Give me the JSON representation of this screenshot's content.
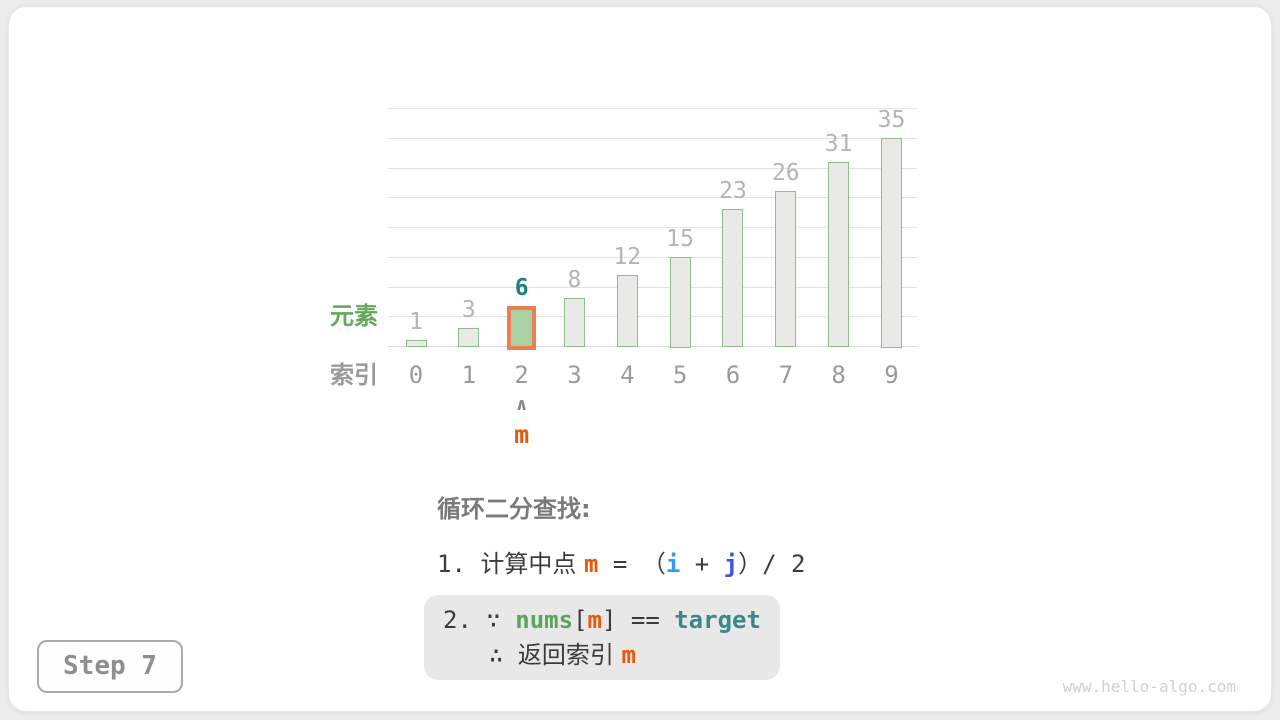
{
  "chart_data": {
    "type": "bar",
    "title": "",
    "categories": [
      "0",
      "1",
      "2",
      "3",
      "4",
      "5",
      "6",
      "7",
      "8",
      "9"
    ],
    "values": [
      1,
      3,
      6,
      8,
      12,
      15,
      23,
      26,
      31,
      35
    ],
    "xlabel": "索引",
    "ylabel": "元素",
    "ylim": [
      0,
      40
    ],
    "gridline_step": 5,
    "grid": true,
    "bar_fill": "#e9eae8",
    "bar_border": "#8fbe8c",
    "value_label_color": "#b4b4b4",
    "highlight": {
      "index": 2,
      "bar_fill": "#a8d2a2",
      "bar_border": "#ef7e4e",
      "value_label_color": "#21807e"
    },
    "pointer": {
      "index": 2,
      "caret": "∧",
      "label": "m"
    }
  },
  "explanation": {
    "heading": "循环二分查找:",
    "line1": [
      {
        "t": "1. ",
        "s": "code"
      },
      {
        "t": "计算中点 ",
        "s": "plain"
      },
      {
        "t": "m",
        "s": "kw-m"
      },
      {
        "t": " = ",
        "s": "code"
      },
      {
        "t": "（",
        "s": "plain"
      },
      {
        "t": "i",
        "s": "kw-i"
      },
      {
        "t": " + ",
        "s": "code"
      },
      {
        "t": "j",
        "s": "kw-j"
      },
      {
        "t": "）",
        "s": "plain"
      },
      {
        "t": "/ 2",
        "s": "code"
      }
    ],
    "line2a": [
      {
        "t": "2. ",
        "s": "code"
      },
      {
        "t": "∵ ",
        "s": "code"
      },
      {
        "t": "nums",
        "s": "kw-nums"
      },
      {
        "t": "[",
        "s": "code"
      },
      {
        "t": "m",
        "s": "kw-m"
      },
      {
        "t": "] == ",
        "s": "code"
      },
      {
        "t": "target",
        "s": "kw-target"
      }
    ],
    "line2b": [
      {
        "t": "∴ ",
        "s": "code"
      },
      {
        "t": "返回索引 ",
        "s": "plain"
      },
      {
        "t": "m",
        "s": "kw-m"
      }
    ]
  },
  "step_badge": "Step 7",
  "watermark": "www.hello-algo.com"
}
